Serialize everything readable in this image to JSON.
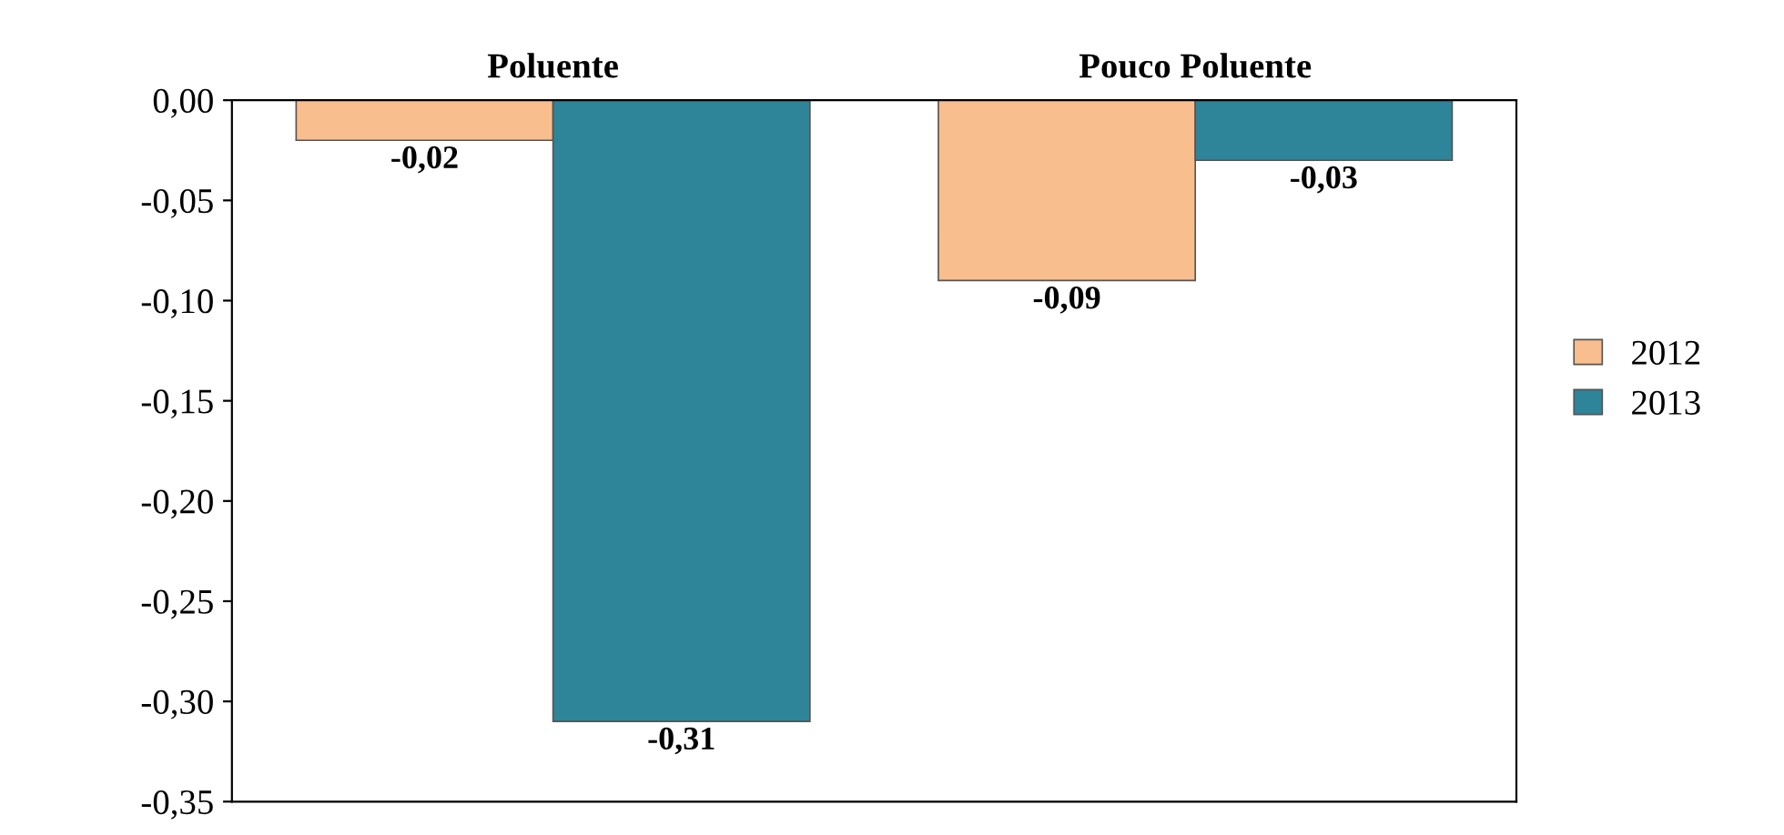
{
  "chart_data": {
    "type": "bar",
    "categories": [
      "Poluente",
      "Pouco Poluente"
    ],
    "series": [
      {
        "name": "2012",
        "color": "#f9be8e",
        "values": [
          -0.02,
          -0.09
        ],
        "value_labels": [
          "-0,02",
          "-0,09"
        ]
      },
      {
        "name": "2013",
        "color": "#2e8499",
        "values": [
          -0.31,
          -0.03
        ],
        "value_labels": [
          "-0,31",
          "-0,03"
        ]
      }
    ],
    "ylim": [
      -0.35,
      0
    ],
    "yticks": [
      {
        "value": 0,
        "label": "0,00"
      },
      {
        "value": -0.05,
        "label": "-0,05"
      },
      {
        "value": -0.1,
        "label": "-0,10"
      },
      {
        "value": -0.15,
        "label": "-0,15"
      },
      {
        "value": -0.2,
        "label": "-0,20"
      },
      {
        "value": -0.25,
        "label": "-0,25"
      },
      {
        "value": -0.3,
        "label": "-0,30"
      },
      {
        "value": -0.35,
        "label": "-0,35"
      }
    ],
    "grid": false,
    "legend": "right"
  }
}
